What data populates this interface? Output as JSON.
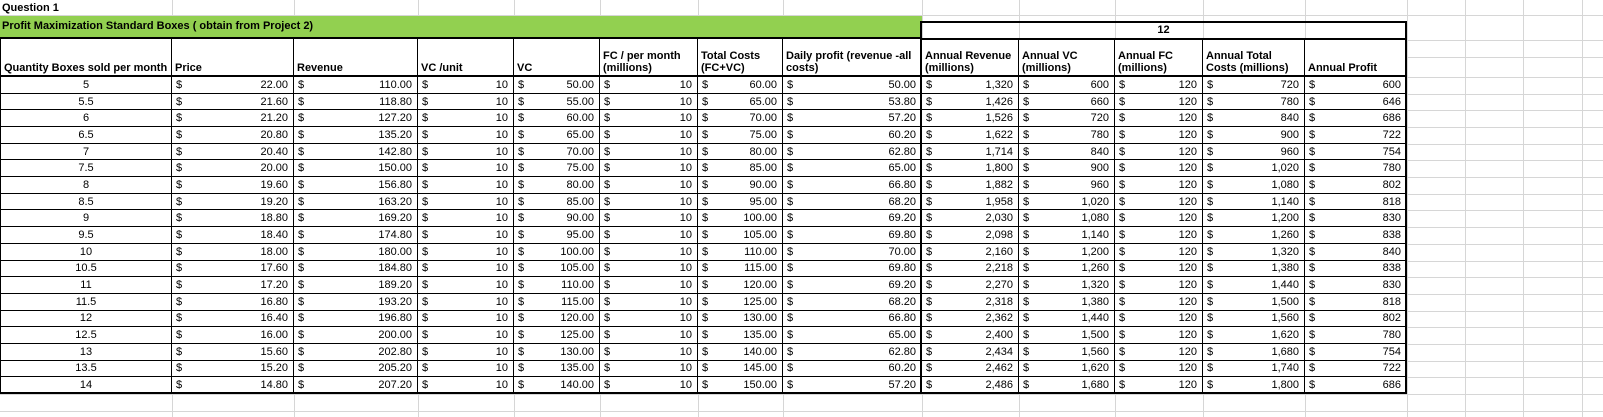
{
  "sheet": {
    "title": "Question 1",
    "banner_text": "Profit Maximization Standard Boxes ( obtain from Project 2)",
    "annual_multiplier": "12",
    "currency_symbol": "$",
    "colors": {
      "banner_green": "#92D050",
      "grid_line": "#D6D6D6",
      "table_border": "#000000"
    }
  },
  "columns": [
    {
      "key": "qty",
      "currency": false,
      "annual": false,
      "lines": [
        "Quantity Boxes sold per month"
      ]
    },
    {
      "key": "price",
      "currency": true,
      "annual": false,
      "lines": [
        "Price"
      ]
    },
    {
      "key": "revenue",
      "currency": true,
      "annual": false,
      "lines": [
        "Revenue"
      ]
    },
    {
      "key": "vc_unit",
      "currency": true,
      "annual": false,
      "lines": [
        "VC /unit"
      ]
    },
    {
      "key": "vc",
      "currency": true,
      "annual": false,
      "lines": [
        "VC"
      ]
    },
    {
      "key": "fc",
      "currency": true,
      "annual": false,
      "lines": [
        "FC / per month",
        "(millions)"
      ]
    },
    {
      "key": "total",
      "currency": true,
      "annual": false,
      "lines": [
        "Total Costs",
        "(FC+VC)"
      ]
    },
    {
      "key": "daily",
      "currency": true,
      "annual": false,
      "lines": [
        "Daily profit  (revenue -all",
        "costs)"
      ]
    },
    {
      "key": "a_rev",
      "currency": true,
      "annual": true,
      "lines": [
        "Annual Revenue",
        "(millions)"
      ]
    },
    {
      "key": "a_vc",
      "currency": true,
      "annual": true,
      "lines": [
        "Annual VC",
        "(millions)"
      ]
    },
    {
      "key": "a_fc",
      "currency": true,
      "annual": true,
      "lines": [
        "Annual FC",
        "(millions)"
      ]
    },
    {
      "key": "a_total",
      "currency": true,
      "annual": true,
      "lines": [
        "Annual Total",
        "Costs (millions)"
      ]
    },
    {
      "key": "a_profit",
      "currency": true,
      "annual": true,
      "lines": [
        "Annual Profit"
      ]
    }
  ],
  "rows": [
    {
      "qty": "5",
      "price": "22.00",
      "revenue": "110.00",
      "vc_unit": "10",
      "vc": "50.00",
      "fc": "10",
      "total": "60.00",
      "daily": "50.00",
      "a_rev": "1,320",
      "a_vc": "600",
      "a_fc": "120",
      "a_total": "720",
      "a_profit": "600"
    },
    {
      "qty": "5.5",
      "price": "21.60",
      "revenue": "118.80",
      "vc_unit": "10",
      "vc": "55.00",
      "fc": "10",
      "total": "65.00",
      "daily": "53.80",
      "a_rev": "1,426",
      "a_vc": "660",
      "a_fc": "120",
      "a_total": "780",
      "a_profit": "646"
    },
    {
      "qty": "6",
      "price": "21.20",
      "revenue": "127.20",
      "vc_unit": "10",
      "vc": "60.00",
      "fc": "10",
      "total": "70.00",
      "daily": "57.20",
      "a_rev": "1,526",
      "a_vc": "720",
      "a_fc": "120",
      "a_total": "840",
      "a_profit": "686"
    },
    {
      "qty": "6.5",
      "price": "20.80",
      "revenue": "135.20",
      "vc_unit": "10",
      "vc": "65.00",
      "fc": "10",
      "total": "75.00",
      "daily": "60.20",
      "a_rev": "1,622",
      "a_vc": "780",
      "a_fc": "120",
      "a_total": "900",
      "a_profit": "722"
    },
    {
      "qty": "7",
      "price": "20.40",
      "revenue": "142.80",
      "vc_unit": "10",
      "vc": "70.00",
      "fc": "10",
      "total": "80.00",
      "daily": "62.80",
      "a_rev": "1,714",
      "a_vc": "840",
      "a_fc": "120",
      "a_total": "960",
      "a_profit": "754"
    },
    {
      "qty": "7.5",
      "price": "20.00",
      "revenue": "150.00",
      "vc_unit": "10",
      "vc": "75.00",
      "fc": "10",
      "total": "85.00",
      "daily": "65.00",
      "a_rev": "1,800",
      "a_vc": "900",
      "a_fc": "120",
      "a_total": "1,020",
      "a_profit": "780"
    },
    {
      "qty": "8",
      "price": "19.60",
      "revenue": "156.80",
      "vc_unit": "10",
      "vc": "80.00",
      "fc": "10",
      "total": "90.00",
      "daily": "66.80",
      "a_rev": "1,882",
      "a_vc": "960",
      "a_fc": "120",
      "a_total": "1,080",
      "a_profit": "802"
    },
    {
      "qty": "8.5",
      "price": "19.20",
      "revenue": "163.20",
      "vc_unit": "10",
      "vc": "85.00",
      "fc": "10",
      "total": "95.00",
      "daily": "68.20",
      "a_rev": "1,958",
      "a_vc": "1,020",
      "a_fc": "120",
      "a_total": "1,140",
      "a_profit": "818"
    },
    {
      "qty": "9",
      "price": "18.80",
      "revenue": "169.20",
      "vc_unit": "10",
      "vc": "90.00",
      "fc": "10",
      "total": "100.00",
      "daily": "69.20",
      "a_rev": "2,030",
      "a_vc": "1,080",
      "a_fc": "120",
      "a_total": "1,200",
      "a_profit": "830"
    },
    {
      "qty": "9.5",
      "price": "18.40",
      "revenue": "174.80",
      "vc_unit": "10",
      "vc": "95.00",
      "fc": "10",
      "total": "105.00",
      "daily": "69.80",
      "a_rev": "2,098",
      "a_vc": "1,140",
      "a_fc": "120",
      "a_total": "1,260",
      "a_profit": "838"
    },
    {
      "qty": "10",
      "price": "18.00",
      "revenue": "180.00",
      "vc_unit": "10",
      "vc": "100.00",
      "fc": "10",
      "total": "110.00",
      "daily": "70.00",
      "a_rev": "2,160",
      "a_vc": "1,200",
      "a_fc": "120",
      "a_total": "1,320",
      "a_profit": "840"
    },
    {
      "qty": "10.5",
      "price": "17.60",
      "revenue": "184.80",
      "vc_unit": "10",
      "vc": "105.00",
      "fc": "10",
      "total": "115.00",
      "daily": "69.80",
      "a_rev": "2,218",
      "a_vc": "1,260",
      "a_fc": "120",
      "a_total": "1,380",
      "a_profit": "838"
    },
    {
      "qty": "11",
      "price": "17.20",
      "revenue": "189.20",
      "vc_unit": "10",
      "vc": "110.00",
      "fc": "10",
      "total": "120.00",
      "daily": "69.20",
      "a_rev": "2,270",
      "a_vc": "1,320",
      "a_fc": "120",
      "a_total": "1,440",
      "a_profit": "830"
    },
    {
      "qty": "11.5",
      "price": "16.80",
      "revenue": "193.20",
      "vc_unit": "10",
      "vc": "115.00",
      "fc": "10",
      "total": "125.00",
      "daily": "68.20",
      "a_rev": "2,318",
      "a_vc": "1,380",
      "a_fc": "120",
      "a_total": "1,500",
      "a_profit": "818"
    },
    {
      "qty": "12",
      "price": "16.40",
      "revenue": "196.80",
      "vc_unit": "10",
      "vc": "120.00",
      "fc": "10",
      "total": "130.00",
      "daily": "66.80",
      "a_rev": "2,362",
      "a_vc": "1,440",
      "a_fc": "120",
      "a_total": "1,560",
      "a_profit": "802"
    },
    {
      "qty": "12.5",
      "price": "16.00",
      "revenue": "200.00",
      "vc_unit": "10",
      "vc": "125.00",
      "fc": "10",
      "total": "135.00",
      "daily": "65.00",
      "a_rev": "2,400",
      "a_vc": "1,500",
      "a_fc": "120",
      "a_total": "1,620",
      "a_profit": "780"
    },
    {
      "qty": "13",
      "price": "15.60",
      "revenue": "202.80",
      "vc_unit": "10",
      "vc": "130.00",
      "fc": "10",
      "total": "140.00",
      "daily": "62.80",
      "a_rev": "2,434",
      "a_vc": "1,560",
      "a_fc": "120",
      "a_total": "1,680",
      "a_profit": "754"
    },
    {
      "qty": "13.5",
      "price": "15.20",
      "revenue": "205.20",
      "vc_unit": "10",
      "vc": "135.00",
      "fc": "10",
      "total": "145.00",
      "daily": "60.20",
      "a_rev": "2,462",
      "a_vc": "1,620",
      "a_fc": "120",
      "a_total": "1,740",
      "a_profit": "722"
    },
    {
      "qty": "14",
      "price": "14.80",
      "revenue": "207.20",
      "vc_unit": "10",
      "vc": "140.00",
      "fc": "10",
      "total": "150.00",
      "daily": "57.20",
      "a_rev": "2,486",
      "a_vc": "1,680",
      "a_fc": "120",
      "a_total": "1,800",
      "a_profit": "686"
    }
  ]
}
